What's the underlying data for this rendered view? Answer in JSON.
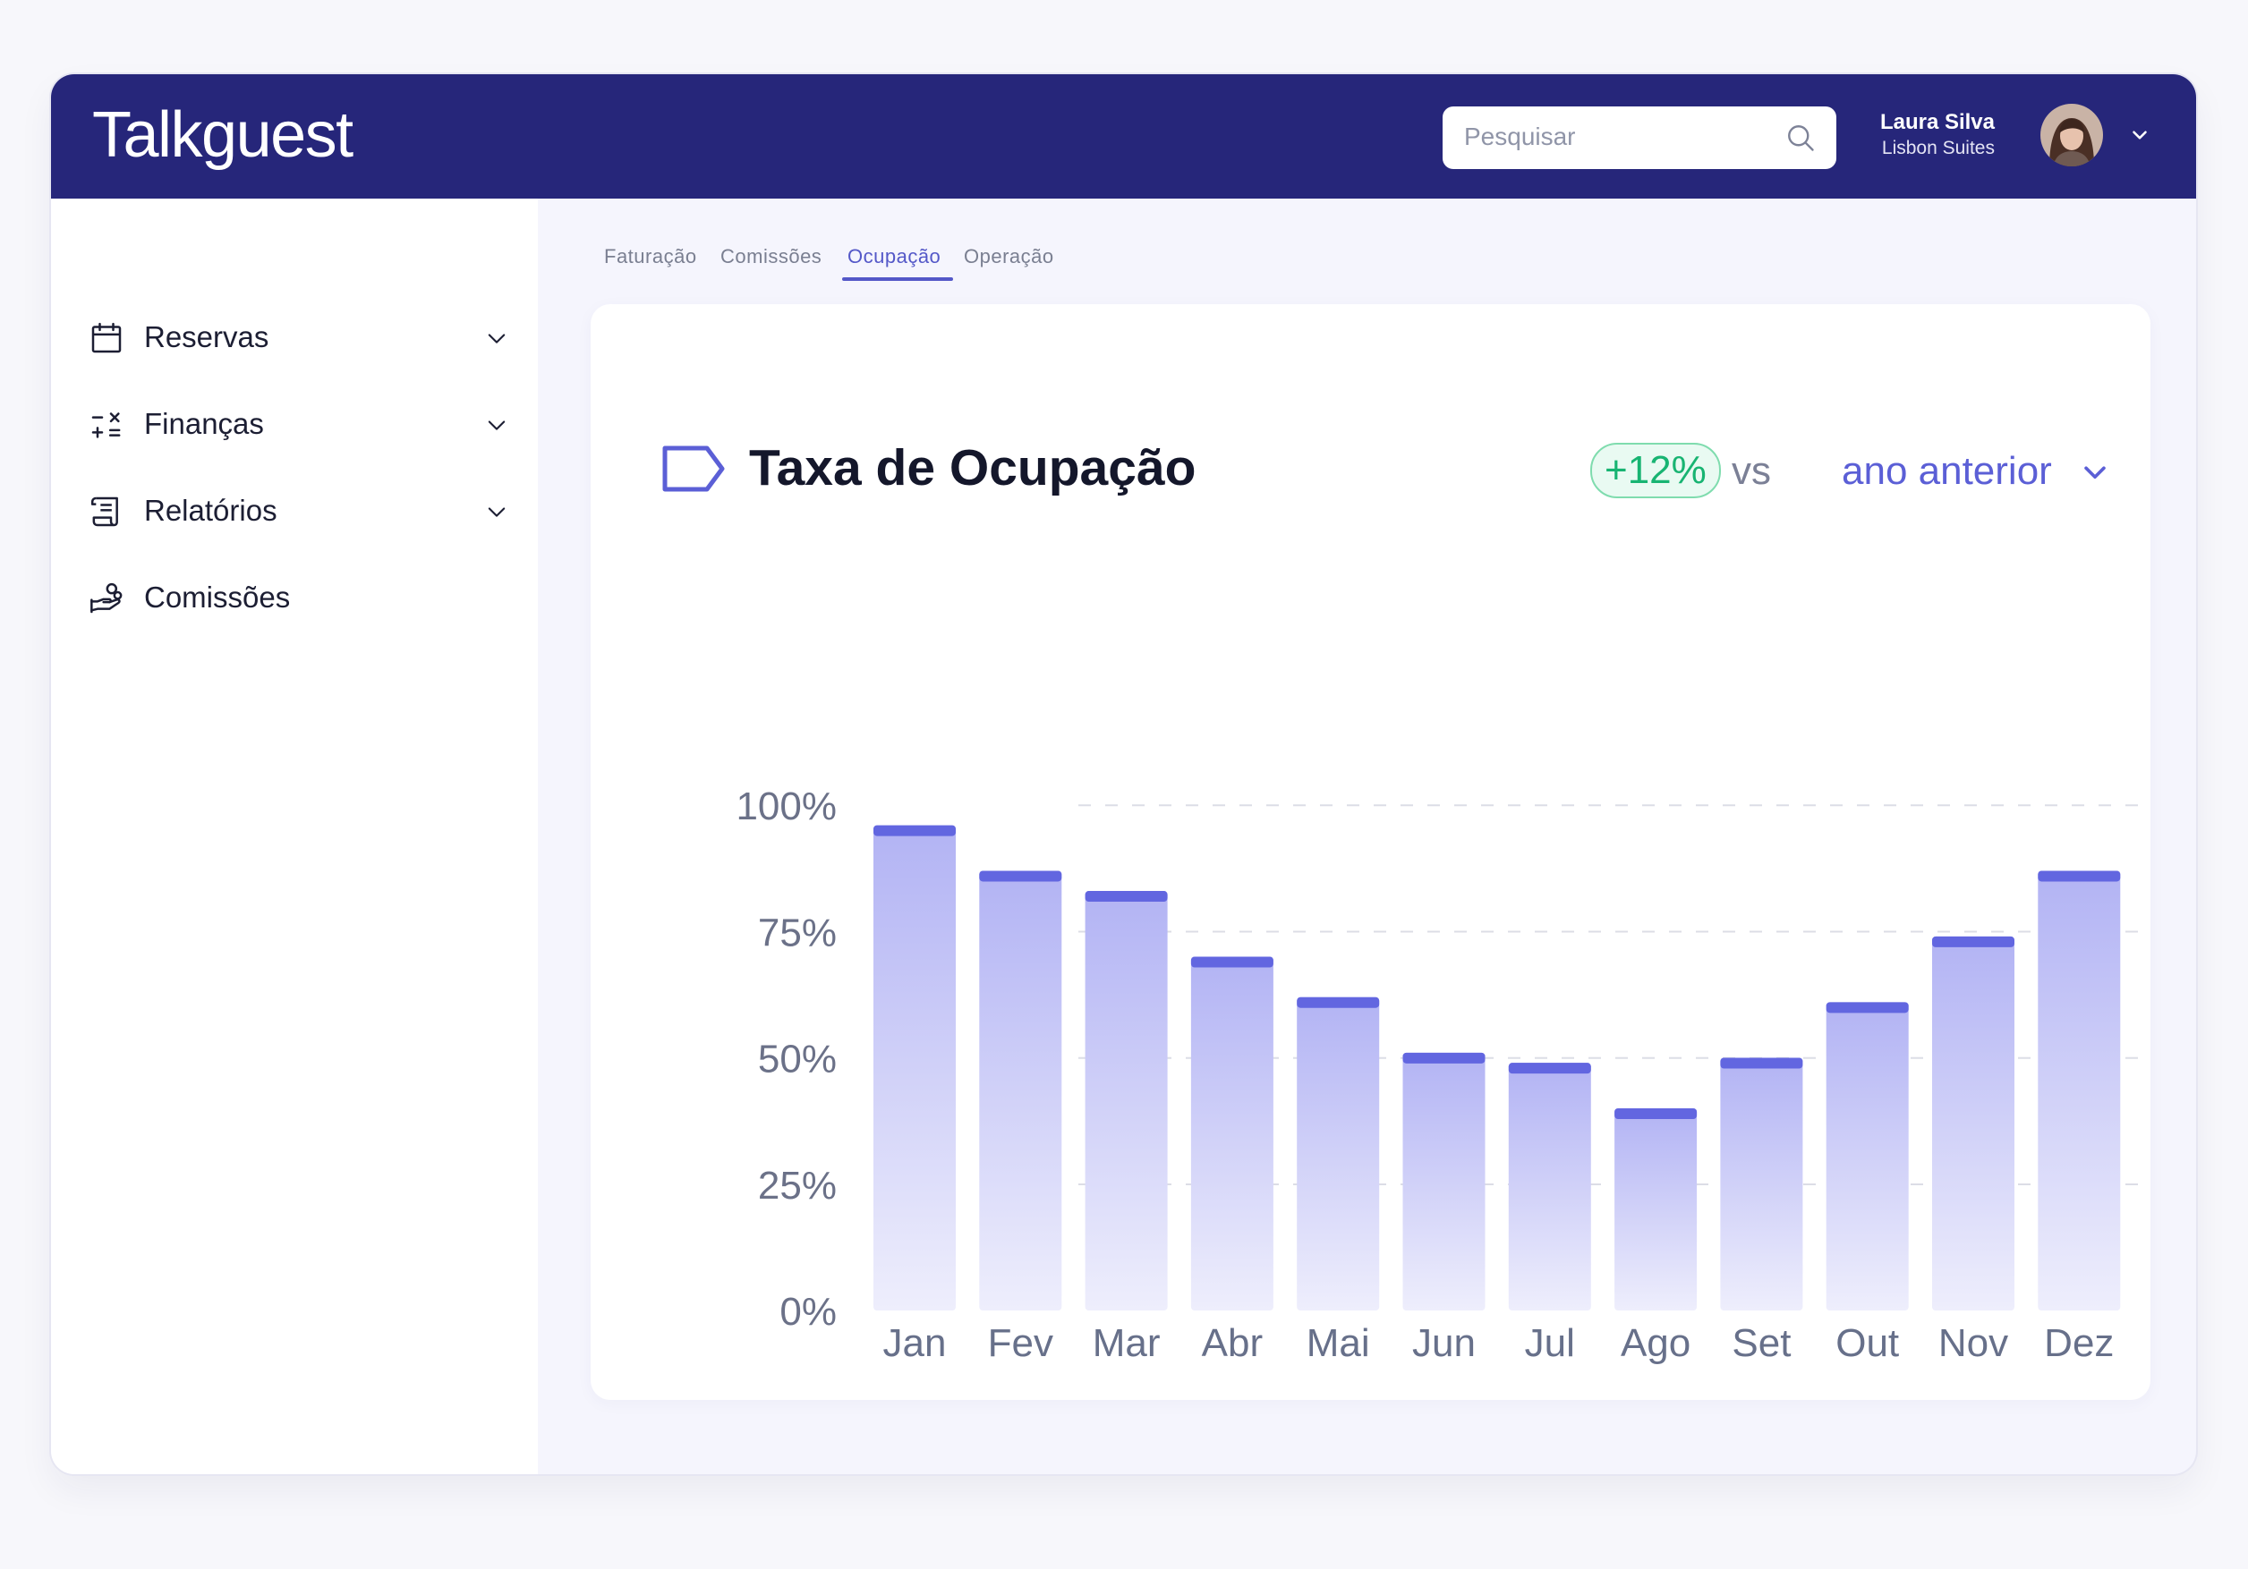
{
  "app": {
    "logo": "Talkguest",
    "search": {
      "placeholder": "Pesquisar"
    },
    "user": {
      "name": "Laura Silva",
      "hotel": "Lisbon Suites"
    }
  },
  "sidebar": {
    "items": [
      {
        "label": "Reservas",
        "icon": "calendar-icon",
        "expandable": true
      },
      {
        "label": "Finanças",
        "icon": "calculator-icon",
        "expandable": true
      },
      {
        "label": "Relatórios",
        "icon": "report-icon",
        "expandable": true
      },
      {
        "label": "Comissões",
        "icon": "hand-coins-icon",
        "expandable": false
      }
    ]
  },
  "tabs": [
    {
      "label": "Faturação",
      "active": false
    },
    {
      "label": "Comissões",
      "active": false
    },
    {
      "label": "Ocupação",
      "active": true
    },
    {
      "label": "Operação",
      "active": false
    }
  ],
  "card": {
    "title": "Taxa de Ocupação",
    "badge": "+12%",
    "vs": "vs",
    "compare": "ano anterior"
  },
  "colors": {
    "header": "#26267a",
    "accent": "#5b5fd6",
    "bar_top": "#6266e0",
    "positive": "#18b472"
  },
  "chart_data": {
    "type": "bar",
    "title": "Taxa de Ocupação",
    "categories": [
      "Jan",
      "Fev",
      "Mar",
      "Abr",
      "Mai",
      "Jun",
      "Jul",
      "Ago",
      "Set",
      "Out",
      "Nov",
      "Dez"
    ],
    "values": [
      96,
      87,
      83,
      70,
      62,
      51,
      49,
      40,
      50,
      61,
      74,
      87
    ],
    "ylim": [
      0,
      100
    ],
    "yticks": [
      "0%",
      "25%",
      "50%",
      "75%",
      "100%"
    ],
    "xlabel": "",
    "ylabel": ""
  }
}
